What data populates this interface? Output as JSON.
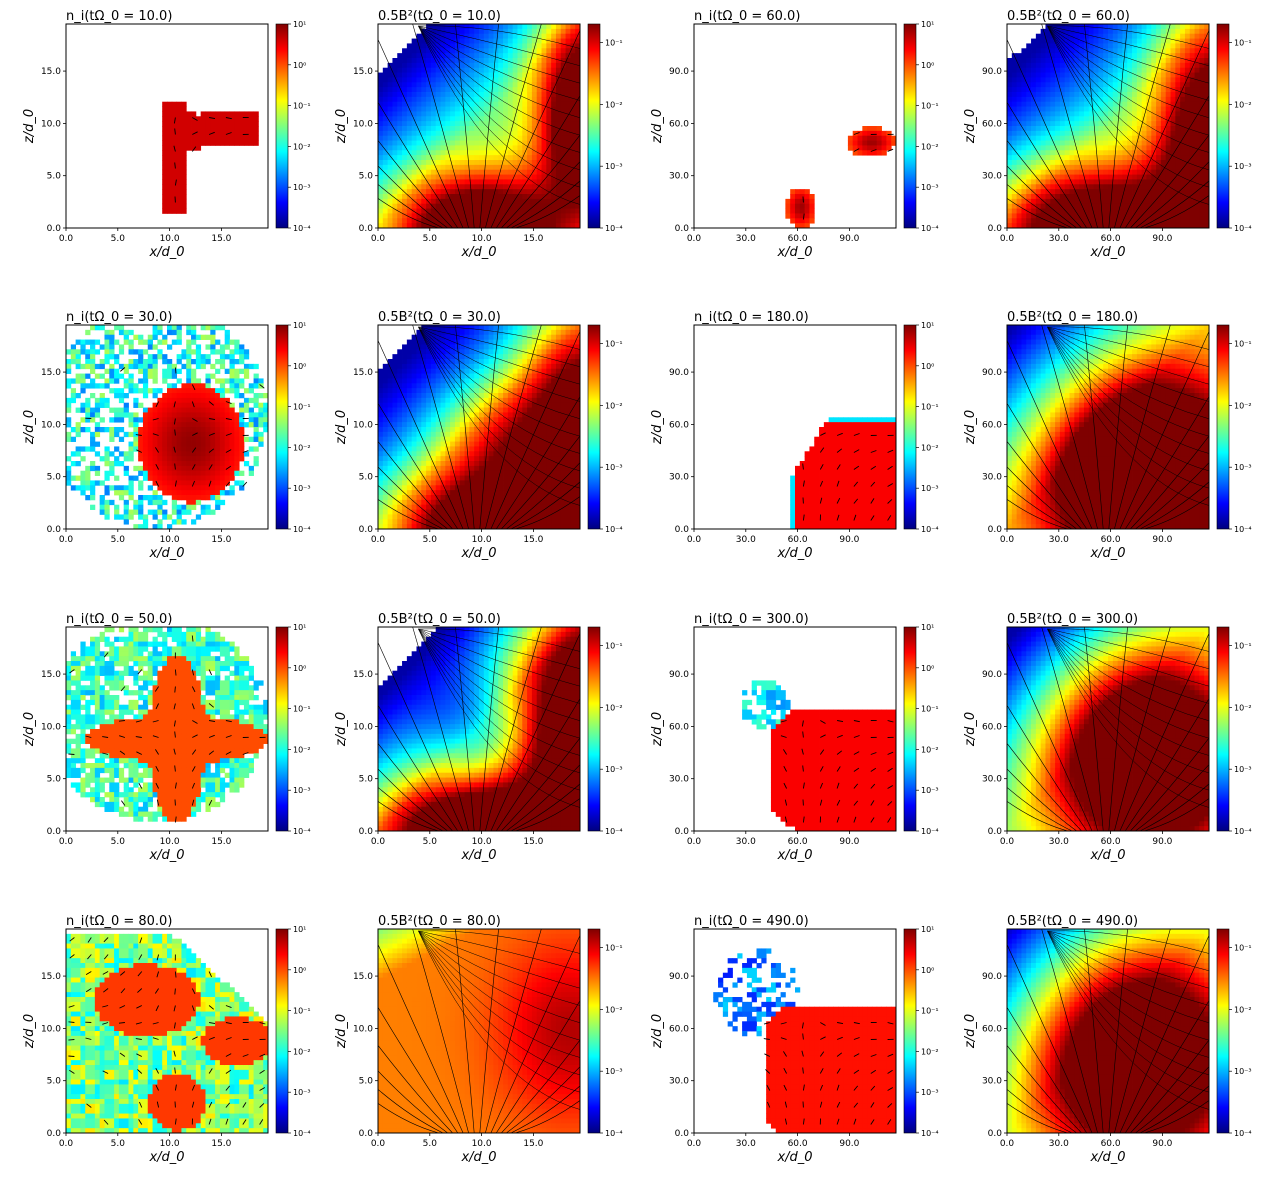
{
  "figure": {
    "layout": "4 rows x 4 columns of pseudocolor maps",
    "colormap": "jet",
    "colormap_stops": [
      "#00007f",
      "#0000ff",
      "#007fff",
      "#00ffff",
      "#7fff7f",
      "#ffff00",
      "#ff7f00",
      "#ff0000",
      "#7f0000"
    ],
    "empty_color": "#ffffff",
    "overlay_color": "#000000"
  },
  "chart_data": [
    {
      "panel": "r0c0",
      "type": "heatmap",
      "quantity": "n_i",
      "title": "n_i(tΩ_0 = 10.0)",
      "xlabel": "x/d_0",
      "ylabel": "z/d_0",
      "xticks": [
        "0.0",
        "5.0",
        "10.0",
        "15.0"
      ],
      "yticks": [
        "0.0",
        "5.0",
        "10.0",
        "15.0"
      ],
      "xlim": [
        0,
        19.5
      ],
      "ylim": [
        0,
        19.5
      ],
      "colorbar": {
        "scale": "log",
        "range": [
          0.0001,
          10
        ],
        "ticks": [
          "10⁻⁴",
          "10⁻³",
          "10⁻²",
          "10⁻¹",
          "10⁰",
          "10¹"
        ]
      },
      "overlay": "velocity arrows",
      "pattern": "flux tube bent: vertical leg near x≈10, horizontal leg at z≈9 out to x≈19"
    },
    {
      "panel": "r0c1",
      "type": "heatmap",
      "quantity": "0.5B^2",
      "title": "0.5B²(tΩ_0 = 10.0)",
      "xlabel": "x/d_0",
      "ylabel": "z/d_0",
      "xticks": [
        "0.0",
        "5.0",
        "10.0",
        "15.0"
      ],
      "yticks": [
        "0.0",
        "5.0",
        "10.0",
        "15.0"
      ],
      "xlim": [
        0,
        19.5
      ],
      "ylim": [
        0,
        19.5
      ],
      "colorbar": {
        "scale": "log",
        "range": [
          0.0001,
          0.2
        ],
        "ticks": [
          "10⁻⁴",
          "10⁻³",
          "10⁻²",
          "10⁻¹"
        ]
      },
      "overlay": "magnetic field lines",
      "pattern": "strong field at bottom center and right edge, weak upper-left"
    },
    {
      "panel": "r0c2",
      "type": "heatmap",
      "quantity": "n_i",
      "title": "n_i(tΩ_0 = 60.0)",
      "xlabel": "x/d_0",
      "ylabel": "z/d_0",
      "xticks": [
        "0.0",
        "30.0",
        "60.0",
        "90.0"
      ],
      "yticks": [
        "0.0",
        "30.0",
        "60.0",
        "90.0"
      ],
      "xlim": [
        0,
        117
      ],
      "ylim": [
        0,
        117
      ],
      "colorbar": {
        "scale": "log",
        "range": [
          0.0001,
          10
        ],
        "ticks": [
          "10⁻⁴",
          "10⁻³",
          "10⁻²",
          "10⁻¹",
          "10⁰",
          "10¹"
        ]
      },
      "overlay": "velocity arrows",
      "pattern": "two compact blobs near (62,15) and (103,52)"
    },
    {
      "panel": "r0c3",
      "type": "heatmap",
      "quantity": "0.5B^2",
      "title": "0.5B²(tΩ_0 = 60.0)",
      "xlabel": "x/d_0",
      "ylabel": "z/d_0",
      "xticks": [
        "0.0",
        "30.0",
        "60.0",
        "90.0"
      ],
      "yticks": [
        "0.0",
        "30.0",
        "60.0",
        "90.0"
      ],
      "xlim": [
        0,
        117
      ],
      "ylim": [
        0,
        117
      ],
      "colorbar": {
        "scale": "log",
        "range": [
          0.0001,
          0.2
        ],
        "ticks": [
          "10⁻⁴",
          "10⁻³",
          "10⁻²",
          "10⁻¹"
        ]
      },
      "overlay": "magnetic field lines",
      "pattern": "dipole-like field, strong at bottom and right"
    },
    {
      "panel": "r1c0",
      "type": "heatmap",
      "quantity": "n_i",
      "title": "n_i(tΩ_0 = 30.0)",
      "xlabel": "x/d_0",
      "ylabel": "z/d_0",
      "xticks": [
        "0.0",
        "5.0",
        "10.0",
        "15.0"
      ],
      "yticks": [
        "0.0",
        "5.0",
        "10.0",
        "15.0"
      ],
      "xlim": [
        0,
        19.5
      ],
      "ylim": [
        0,
        19.5
      ],
      "colorbar": {
        "scale": "log",
        "range": [
          0.0001,
          10
        ],
        "ticks": [
          "10⁻⁴",
          "10⁻³",
          "10⁻²",
          "10⁻¹",
          "10⁰",
          "10¹"
        ]
      },
      "overlay": "velocity arrows",
      "pattern": "dense core around (12,8) with fragmented low-density halo"
    },
    {
      "panel": "r1c1",
      "type": "heatmap",
      "quantity": "0.5B^2",
      "title": "0.5B²(tΩ_0 = 30.0)",
      "xlabel": "x/d_0",
      "ylabel": "z/d_0",
      "xticks": [
        "0.0",
        "5.0",
        "10.0",
        "15.0"
      ],
      "yticks": [
        "0.0",
        "5.0",
        "10.0",
        "15.0"
      ],
      "xlim": [
        0,
        19.5
      ],
      "ylim": [
        0,
        19.5
      ],
      "colorbar": {
        "scale": "log",
        "range": [
          0.0001,
          0.2
        ],
        "ticks": [
          "10⁻⁴",
          "10⁻³",
          "10⁻²",
          "10⁻¹"
        ]
      },
      "overlay": "magnetic field lines",
      "pattern": "strong field bottom and right, bubble around (12,8)"
    },
    {
      "panel": "r1c2",
      "type": "heatmap",
      "quantity": "n_i",
      "title": "n_i(tΩ_0 = 180.0)",
      "xlabel": "x/d_0",
      "ylabel": "z/d_0",
      "xticks": [
        "0.0",
        "30.0",
        "60.0",
        "90.0"
      ],
      "yticks": [
        "0.0",
        "30.0",
        "60.0",
        "90.0"
      ],
      "xlim": [
        0,
        117
      ],
      "ylim": [
        0,
        117
      ],
      "colorbar": {
        "scale": "log",
        "range": [
          0.0001,
          10
        ],
        "ticks": [
          "10⁻⁴",
          "10⁻³",
          "10⁻²",
          "10⁻¹",
          "10⁰",
          "10¹"
        ]
      },
      "overlay": "velocity arrows",
      "pattern": "dense wedge from x≈55 to the right edge, z 0–63"
    },
    {
      "panel": "r1c3",
      "type": "heatmap",
      "quantity": "0.5B^2",
      "title": "0.5B²(tΩ_0 = 180.0)",
      "xlabel": "x/d_0",
      "ylabel": "z/d_0",
      "xticks": [
        "0.0",
        "30.0",
        "60.0",
        "90.0"
      ],
      "yticks": [
        "0.0",
        "30.0",
        "60.0",
        "90.0"
      ],
      "xlim": [
        0,
        117
      ],
      "ylim": [
        0,
        117
      ],
      "colorbar": {
        "scale": "log",
        "range": [
          0.0001,
          0.2
        ],
        "ticks": [
          "10⁻⁴",
          "10⁻³",
          "10⁻²",
          "10⁻¹"
        ]
      },
      "overlay": "magnetic field lines",
      "pattern": "strong field lower right, weak upper left"
    },
    {
      "panel": "r2c0",
      "type": "heatmap",
      "quantity": "n_i",
      "title": "n_i(tΩ_0 = 50.0)",
      "xlabel": "x/d_0",
      "ylabel": "z/d_0",
      "xticks": [
        "0.0",
        "5.0",
        "10.0",
        "15.0"
      ],
      "yticks": [
        "0.0",
        "5.0",
        "10.0",
        "15.0"
      ],
      "xlim": [
        0,
        19.5
      ],
      "ylim": [
        0,
        19.5
      ],
      "colorbar": {
        "scale": "log",
        "range": [
          0.0001,
          10
        ],
        "ticks": [
          "10⁻⁴",
          "10⁻³",
          "10⁻²",
          "10⁻¹",
          "10⁰",
          "10¹"
        ]
      },
      "overlay": "velocity arrows",
      "pattern": "cross-shaped dense core with broad diffuse cloud"
    },
    {
      "panel": "r2c1",
      "type": "heatmap",
      "quantity": "0.5B^2",
      "title": "0.5B²(tΩ_0 = 50.0)",
      "xlabel": "x/d_0",
      "ylabel": "z/d_0",
      "xticks": [
        "0.0",
        "5.0",
        "10.0",
        "15.0"
      ],
      "yticks": [
        "0.0",
        "5.0",
        "10.0",
        "15.0"
      ],
      "xlim": [
        0,
        19.5
      ],
      "ylim": [
        0,
        19.5
      ],
      "colorbar": {
        "scale": "log",
        "range": [
          0.0001,
          0.2
        ],
        "ticks": [
          "10⁻⁴",
          "10⁻³",
          "10⁻²",
          "10⁻¹"
        ]
      },
      "overlay": "magnetic field lines",
      "pattern": "field depressed inside a rounded cavity"
    },
    {
      "panel": "r2c2",
      "type": "heatmap",
      "quantity": "n_i",
      "title": "n_i(tΩ_0 = 300.0)",
      "xlabel": "x/d_0",
      "ylabel": "z/d_0",
      "xticks": [
        "0.0",
        "30.0",
        "60.0",
        "90.0"
      ],
      "yticks": [
        "0.0",
        "30.0",
        "60.0",
        "90.0"
      ],
      "xlim": [
        0,
        117
      ],
      "ylim": [
        0,
        117
      ],
      "colorbar": {
        "scale": "log",
        "range": [
          0.0001,
          10
        ],
        "ticks": [
          "10⁻⁴",
          "10⁻³",
          "10⁻²",
          "10⁻¹",
          "10⁰",
          "10¹"
        ]
      },
      "overlay": "velocity arrows",
      "pattern": "dense lobe in lower right with low-density plume toward upper left"
    },
    {
      "panel": "r2c3",
      "type": "heatmap",
      "quantity": "0.5B^2",
      "title": "0.5B²(tΩ_0 = 300.0)",
      "xlabel": "x/d_0",
      "ylabel": "z/d_0",
      "xticks": [
        "0.0",
        "30.0",
        "60.0",
        "90.0"
      ],
      "yticks": [
        "0.0",
        "30.0",
        "60.0",
        "90.0"
      ],
      "xlim": [
        0,
        117
      ],
      "ylim": [
        0,
        117
      ],
      "colorbar": {
        "scale": "log",
        "range": [
          0.0001,
          0.2
        ],
        "ticks": [
          "10⁻⁴",
          "10⁻³",
          "10⁻²",
          "10⁻¹"
        ]
      },
      "overlay": "magnetic field lines",
      "pattern": "strong field filling lower right"
    },
    {
      "panel": "r3c0",
      "type": "heatmap",
      "quantity": "n_i",
      "title": "n_i(tΩ_0 = 80.0)",
      "xlabel": "x/d_0",
      "ylabel": "z/d_0",
      "xticks": [
        "0.0",
        "5.0",
        "10.0",
        "15.0"
      ],
      "yticks": [
        "0.0",
        "5.0",
        "10.0",
        "15.0"
      ],
      "xlim": [
        0,
        19.5
      ],
      "ylim": [
        0,
        19.5
      ],
      "colorbar": {
        "scale": "log",
        "range": [
          0.0001,
          10
        ],
        "ticks": [
          "10⁻⁴",
          "10⁻³",
          "10⁻²",
          "10⁻¹",
          "10⁰",
          "10¹"
        ]
      },
      "overlay": "velocity arrows",
      "pattern": "plasma fills most of box, dense lobe upper left and core lower center"
    },
    {
      "panel": "r3c1",
      "type": "heatmap",
      "quantity": "0.5B^2",
      "title": "0.5B²(tΩ_0 = 80.0)",
      "xlabel": "x/d_0",
      "ylabel": "z/d_0",
      "xticks": [
        "0.0",
        "5.0",
        "10.0",
        "15.0"
      ],
      "yticks": [
        "0.0",
        "5.0",
        "10.0",
        "15.0"
      ],
      "xlim": [
        0,
        19.5
      ],
      "ylim": [
        0,
        19.5
      ],
      "colorbar": {
        "scale": "log",
        "range": [
          0.0001,
          0.2
        ],
        "ticks": [
          "10⁻⁴",
          "10⁻³",
          "10⁻²",
          "10⁻¹"
        ]
      },
      "overlay": "magnetic field lines",
      "pattern": "field compressed everywhere with looped structure"
    },
    {
      "panel": "r3c2",
      "type": "heatmap",
      "quantity": "n_i",
      "title": "n_i(tΩ_0 = 490.0)",
      "xlabel": "x/d_0",
      "ylabel": "z/d_0",
      "xticks": [
        "0.0",
        "30.0",
        "60.0",
        "90.0"
      ],
      "yticks": [
        "0.0",
        "30.0",
        "60.0",
        "90.0"
      ],
      "xlim": [
        0,
        117
      ],
      "ylim": [
        0,
        117
      ],
      "colorbar": {
        "scale": "log",
        "range": [
          0.0001,
          10
        ],
        "ticks": [
          "10⁻⁴",
          "10⁻³",
          "10⁻²",
          "10⁻¹",
          "10⁰",
          "10¹"
        ]
      },
      "overlay": "velocity arrows",
      "pattern": "large dense lobe lower right, scattered plume upper left"
    },
    {
      "panel": "r3c3",
      "type": "heatmap",
      "quantity": "0.5B^2",
      "title": "0.5B²(tΩ_0 = 490.0)",
      "xlabel": "x/d_0",
      "ylabel": "z/d_0",
      "xticks": [
        "0.0",
        "30.0",
        "60.0",
        "90.0"
      ],
      "yticks": [
        "0.0",
        "30.0",
        "60.0",
        "90.0"
      ],
      "xlim": [
        0,
        117
      ],
      "ylim": [
        0,
        117
      ],
      "colorbar": {
        "scale": "log",
        "range": [
          0.0001,
          0.2
        ],
        "ticks": [
          "10⁻⁴",
          "10⁻³",
          "10⁻²",
          "10⁻¹"
        ]
      },
      "overlay": "magnetic field lines",
      "pattern": "strong field region expands to most of the box"
    }
  ]
}
